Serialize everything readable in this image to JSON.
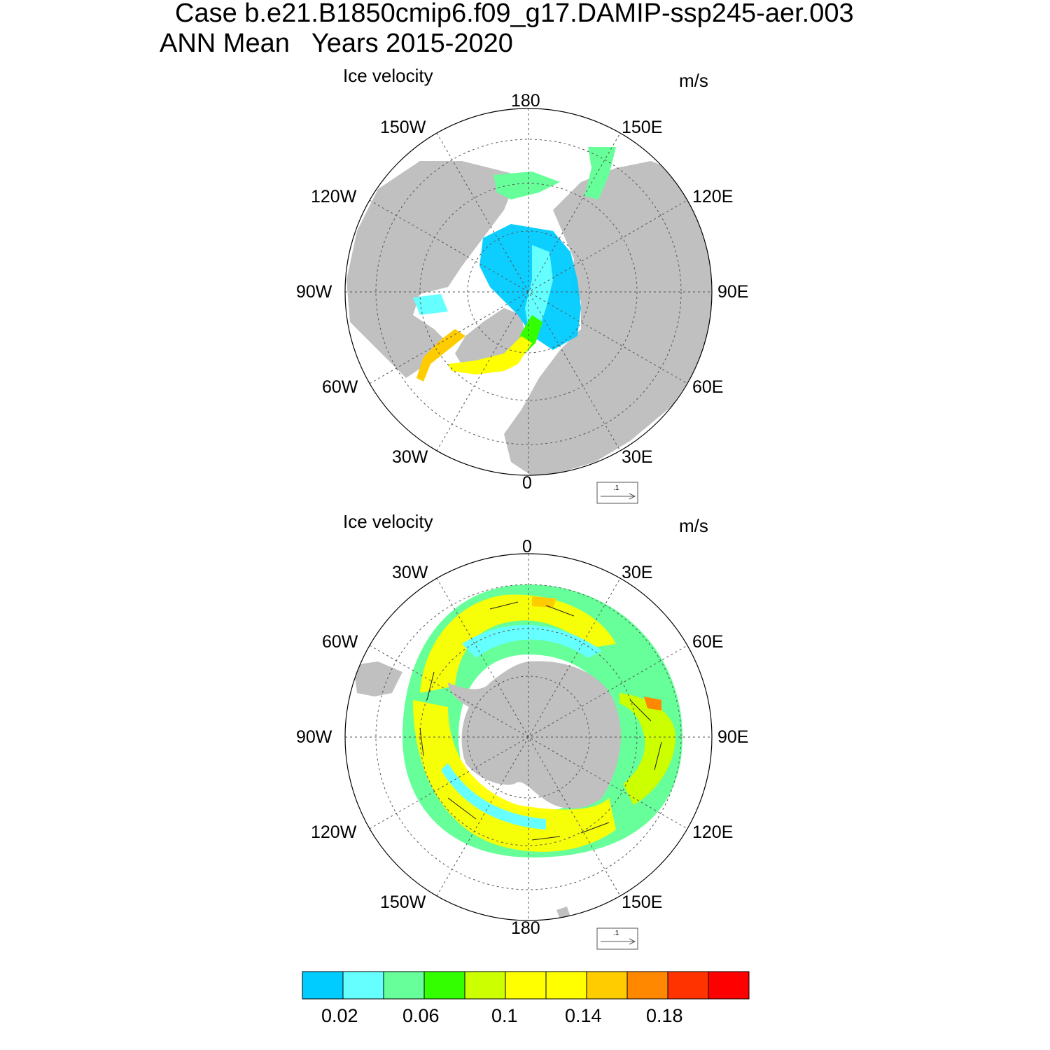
{
  "header": {
    "case_line": "Case b.e21.B1850cmip6.f09_g17.DAMIP-ssp245-aer.003",
    "period_line": "ANN Mean   Years 2015-2020"
  },
  "panels": [
    {
      "hemisphere": "north",
      "label": "Ice velocity",
      "units": "m/s",
      "ref_vector_label": ".1",
      "lon_labels": {
        "top": "180",
        "top_left": "150W",
        "top_right": "150E",
        "upper_left": "120W",
        "upper_right": "120E",
        "left": "90W",
        "right": "90E",
        "lower_left": "60W",
        "lower_right": "60E",
        "bottom_left": "30W",
        "bottom_right": "30E",
        "bottom": "0"
      }
    },
    {
      "hemisphere": "south",
      "label": "Ice velocity",
      "units": "m/s",
      "ref_vector_label": ".1",
      "lon_labels": {
        "top": "0",
        "top_left": "30W",
        "top_right": "30E",
        "upper_left": "60W",
        "upper_right": "60E",
        "left": "90W",
        "right": "90E",
        "lower_left": "120W",
        "lower_right": "120E",
        "bottom_left": "150W",
        "bottom_right": "150E",
        "bottom": "180"
      }
    }
  ],
  "colorbar": {
    "colors": [
      "#00ccff",
      "#66ffff",
      "#66ff99",
      "#33ff00",
      "#ccff00",
      "#ffff00",
      "#ffff00",
      "#ffcc00",
      "#ff8800",
      "#ff3300",
      "#ff0000"
    ],
    "tick_labels": [
      "0.02",
      "0.06",
      "0.1",
      "0.14",
      "0.18"
    ]
  },
  "colors": {
    "land": "#c0c0c0",
    "ocean": "#ffffff"
  }
}
